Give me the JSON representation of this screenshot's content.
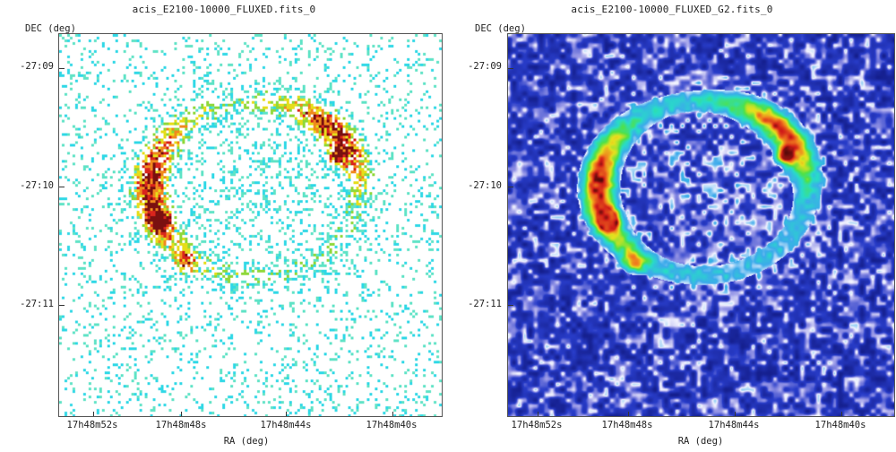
{
  "panels": [
    {
      "title": "acis_E2100-10000_FLUXED.fits_0",
      "y_axis_label": "DEC (deg)",
      "x_axis_label": "RA (deg)",
      "y_ticks": [
        "-27:09",
        "-27:10",
        "-27:11"
      ],
      "x_ticks": [
        "17h48m52s",
        "17h48m48s",
        "17h48m44s",
        "17h48m40s"
      ],
      "image": "raw x-ray counts map, sparse cyan/green pixels with yellow/red shell",
      "background_color": "#ffffff"
    },
    {
      "title": "acis_E2100-10000_FLUXED_G2.fits_0",
      "y_axis_label": "DEC (deg)",
      "x_axis_label": "RA (deg)",
      "y_ticks": [
        "-27:09",
        "-27:10",
        "-27:11"
      ],
      "x_ticks": [
        "17h48m52s",
        "17h48m48s",
        "17h48m44s",
        "17h48m40s"
      ],
      "image": "gaussian smoothed x-ray map, blue background with cyan/green/yellow/red shell",
      "background_color": "#1e2a9c"
    }
  ]
}
